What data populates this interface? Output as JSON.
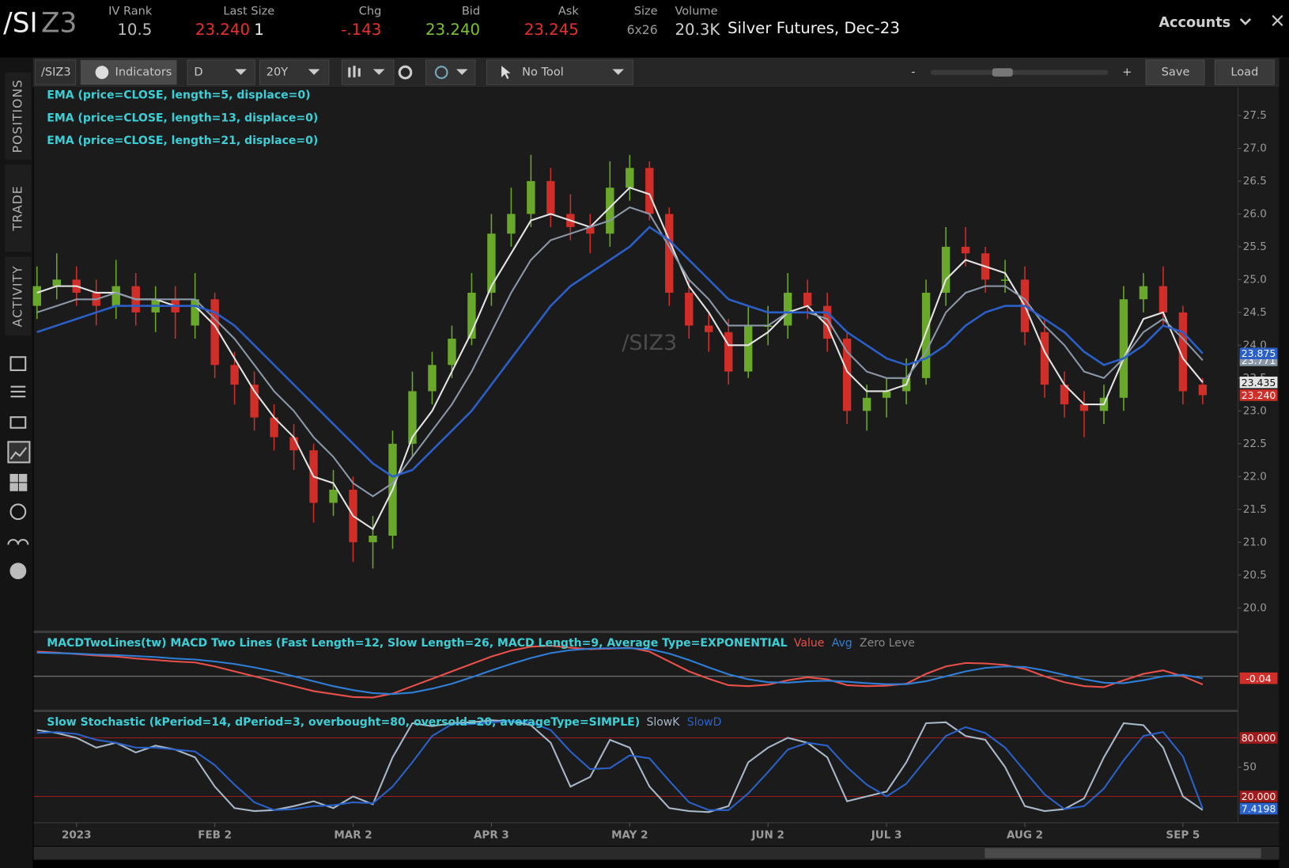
{
  "header": {
    "symbol_root": "/SI",
    "symbol_contract": "Z3",
    "quote": [
      {
        "label": "IV Rank",
        "value": "10.5"
      },
      {
        "label": "Last Size",
        "value": "23.240",
        "size": "1"
      },
      {
        "label": "Chg",
        "value": "-.143"
      },
      {
        "label": "Bid",
        "value": "23.240"
      },
      {
        "label": "Ask",
        "value": "23.245"
      },
      {
        "label": "Size",
        "value": "6x26"
      },
      {
        "label": "Volume",
        "value": "20.3K"
      }
    ],
    "description": "Silver Futures, Dec-23",
    "accounts": "Accounts"
  },
  "toolbar": {
    "symbol": "/SIZ3",
    "indicators": "Indicators",
    "aggregation": "D",
    "range": "20Y",
    "tool": "No Tool",
    "zoom_out": "-",
    "zoom_in": "+",
    "save": "Save",
    "load": "Load"
  },
  "side_tabs": [
    "POSITIONS",
    "TRADE",
    "ACTIVITY"
  ],
  "chart_data": [
    {
      "type": "candlestick",
      "watermark": "/SIZ3",
      "categories": [
        null,
        null,
        "2023",
        null,
        null,
        null,
        null,
        null,
        null,
        "FEB 2",
        null,
        null,
        null,
        null,
        null,
        null,
        "MAR 2",
        null,
        null,
        null,
        null,
        null,
        null,
        "APR 3",
        null,
        null,
        null,
        null,
        null,
        null,
        "MAY 2",
        null,
        null,
        null,
        null,
        null,
        null,
        "JUN 2",
        null,
        null,
        null,
        null,
        null,
        "JUL 3",
        null,
        null,
        null,
        null,
        null,
        null,
        "AUG 2",
        null,
        null,
        null,
        null,
        null,
        null,
        null,
        "SEP 5",
        null
      ],
      "open": [
        24.6,
        24.9,
        25.0,
        24.8,
        24.6,
        24.9,
        24.5,
        24.7,
        24.3,
        24.7,
        23.7,
        23.4,
        22.9,
        22.6,
        22.4,
        21.6,
        21.8,
        21.0,
        21.1,
        22.5,
        23.3,
        23.7,
        24.1,
        24.8,
        25.7,
        26.0,
        26.5,
        26.0,
        25.8,
        25.7,
        26.4,
        26.7,
        26.0,
        24.8,
        24.3,
        24.2,
        23.6,
        24.3,
        24.3,
        24.8,
        24.6,
        24.1,
        23.0,
        23.2,
        23.3,
        23.5,
        24.8,
        25.5,
        25.4,
        25.0,
        25.0,
        24.2,
        23.4,
        23.1,
        23.0,
        23.2,
        24.7,
        24.9,
        24.5,
        23.4
      ],
      "high": [
        25.2,
        25.4,
        25.2,
        25.0,
        25.3,
        25.1,
        24.9,
        24.9,
        25.1,
        24.8,
        23.9,
        23.6,
        23.1,
        22.8,
        22.5,
        22.1,
        22.0,
        21.4,
        22.7,
        23.6,
        23.9,
        24.3,
        25.1,
        26.0,
        26.4,
        26.9,
        26.7,
        26.3,
        26.0,
        26.8,
        26.9,
        26.8,
        26.1,
        25.0,
        24.5,
        24.4,
        24.6,
        24.6,
        25.1,
        25.0,
        24.8,
        24.2,
        23.4,
        23.5,
        23.8,
        25.0,
        25.8,
        25.8,
        25.5,
        25.3,
        25.2,
        24.4,
        23.6,
        23.3,
        23.4,
        24.9,
        25.1,
        25.2,
        24.6,
        23.5
      ],
      "low": [
        24.4,
        24.7,
        24.6,
        24.3,
        24.4,
        24.3,
        24.2,
        24.1,
        24.1,
        23.5,
        23.1,
        22.7,
        22.4,
        22.1,
        21.3,
        21.4,
        20.7,
        20.6,
        20.9,
        22.3,
        23.1,
        23.5,
        24.0,
        24.6,
        25.5,
        25.8,
        25.8,
        25.6,
        25.4,
        25.5,
        26.2,
        25.9,
        24.6,
        24.1,
        23.9,
        23.4,
        23.5,
        24.0,
        24.1,
        24.4,
        23.9,
        22.8,
        22.7,
        22.9,
        23.1,
        23.4,
        24.6,
        25.2,
        24.8,
        24.8,
        24.0,
        23.2,
        22.9,
        22.6,
        22.8,
        23.0,
        24.5,
        24.3,
        23.1,
        23.1
      ],
      "close": [
        24.9,
        25.0,
        24.8,
        24.6,
        24.9,
        24.5,
        24.7,
        24.5,
        24.7,
        23.7,
        23.4,
        22.9,
        22.6,
        22.4,
        21.6,
        21.8,
        21.0,
        21.1,
        22.5,
        23.3,
        23.7,
        24.1,
        24.8,
        25.7,
        26.0,
        26.5,
        26.0,
        25.8,
        25.7,
        26.4,
        26.7,
        26.0,
        24.8,
        24.3,
        24.2,
        23.6,
        24.3,
        24.3,
        24.8,
        24.6,
        24.1,
        23.0,
        23.2,
        23.3,
        23.5,
        24.8,
        25.5,
        25.4,
        25.0,
        25.0,
        24.2,
        23.4,
        23.1,
        23.0,
        23.2,
        24.7,
        24.9,
        24.5,
        23.3,
        23.24
      ],
      "close_label": "23.240",
      "up_color": "#6aa82c",
      "down_color": "#d02e28",
      "series": [
        {
          "name": "EMA (price=CLOSE, length=5, displace=0)",
          "color": "#e4e4e4",
          "values": [
            24.8,
            24.9,
            24.9,
            24.8,
            24.8,
            24.7,
            24.7,
            24.6,
            24.6,
            24.3,
            23.8,
            23.3,
            22.9,
            22.6,
            22.0,
            21.9,
            21.4,
            21.2,
            21.8,
            22.6,
            23.0,
            23.6,
            24.2,
            24.9,
            25.4,
            25.9,
            26.0,
            25.9,
            25.8,
            26.1,
            26.4,
            26.3,
            25.6,
            24.9,
            24.5,
            24.0,
            24.0,
            24.2,
            24.5,
            24.6,
            24.3,
            23.6,
            23.3,
            23.3,
            23.4,
            24.2,
            25.0,
            25.3,
            25.2,
            25.1,
            24.6,
            23.9,
            23.4,
            23.1,
            23.1,
            23.8,
            24.4,
            24.5,
            23.8,
            23.435
          ]
        },
        {
          "name": "EMA (price=CLOSE, length=13, displace=0)",
          "color": "#8a98a8",
          "values": [
            24.5,
            24.6,
            24.7,
            24.7,
            24.8,
            24.7,
            24.7,
            24.7,
            24.7,
            24.4,
            24.1,
            23.7,
            23.3,
            23.0,
            22.6,
            22.3,
            21.9,
            21.7,
            21.9,
            22.3,
            22.7,
            23.1,
            23.6,
            24.2,
            24.8,
            25.3,
            25.6,
            25.7,
            25.8,
            25.9,
            26.1,
            26.0,
            25.5,
            25.0,
            24.7,
            24.3,
            24.3,
            24.3,
            24.5,
            24.5,
            24.4,
            23.9,
            23.6,
            23.5,
            23.5,
            23.9,
            24.5,
            24.8,
            24.9,
            24.9,
            24.7,
            24.3,
            24.0,
            23.6,
            23.5,
            23.8,
            24.2,
            24.4,
            24.1,
            23.771
          ]
        },
        {
          "name": "EMA (price=CLOSE, length=21, displace=0)",
          "color": "#2a5fc8",
          "values": [
            24.2,
            24.3,
            24.4,
            24.5,
            24.6,
            24.6,
            24.6,
            24.6,
            24.6,
            24.5,
            24.3,
            24.0,
            23.7,
            23.4,
            23.1,
            22.8,
            22.5,
            22.2,
            22.0,
            22.1,
            22.4,
            22.7,
            23.0,
            23.4,
            23.8,
            24.2,
            24.6,
            24.9,
            25.1,
            25.3,
            25.5,
            25.8,
            25.6,
            25.3,
            25.0,
            24.7,
            24.6,
            24.5,
            24.5,
            24.5,
            24.5,
            24.2,
            24.0,
            23.8,
            23.7,
            23.8,
            24.0,
            24.3,
            24.5,
            24.6,
            24.6,
            24.4,
            24.2,
            23.9,
            23.7,
            23.8,
            24.0,
            24.3,
            24.2,
            23.875
          ]
        }
      ],
      "ylim": [
        19.66,
        27.93
      ],
      "yticks": [
        {
          "value": 20,
          "label": "20.0"
        },
        {
          "value": 20.5,
          "label": "20.5"
        },
        {
          "value": 21,
          "label": "21.0"
        },
        {
          "value": 21.5,
          "label": "21.5"
        },
        {
          "value": 22,
          "label": "22.0"
        },
        {
          "value": 22.5,
          "label": "22.5"
        },
        {
          "value": 23,
          "label": "23.0"
        },
        {
          "value": 23.5,
          "label": "23.5"
        },
        {
          "value": 24,
          "label": "24.0"
        },
        {
          "value": 24.5,
          "label": "24.5"
        },
        {
          "value": 25,
          "label": "25.0"
        },
        {
          "value": 25.5,
          "label": "25.5"
        },
        {
          "value": 26,
          "label": "26.0"
        },
        {
          "value": 26.5,
          "label": "26.5"
        },
        {
          "value": 27,
          "label": "27.0"
        },
        {
          "value": 27.5,
          "label": "27.5"
        }
      ]
    },
    {
      "type": "line",
      "title": "MACDTwoLines(tw) MACD Two Lines (Fast Length=12, Slow Length=26, MACD Length=9, Average Type=EXPONENTIAL",
      "series": [
        {
          "name": "Value",
          "color": "#e8504a",
          "values": [
            0.5,
            0.48,
            0.45,
            0.42,
            0.4,
            0.36,
            0.33,
            0.3,
            0.28,
            0.2,
            0.1,
            0,
            -0.1,
            -0.2,
            -0.3,
            -0.36,
            -0.42,
            -0.43,
            -0.35,
            -0.2,
            -0.05,
            0.1,
            0.25,
            0.4,
            0.52,
            0.6,
            0.62,
            0.58,
            0.55,
            0.56,
            0.58,
            0.5,
            0.3,
            0.1,
            -0.05,
            -0.18,
            -0.2,
            -0.17,
            -0.08,
            -0.02,
            -0.06,
            -0.18,
            -0.2,
            -0.19,
            -0.15,
            0.05,
            0.2,
            0.27,
            0.26,
            0.23,
            0.15,
            0,
            -0.12,
            -0.2,
            -0.22,
            -0.08,
            0.05,
            0.12,
            0,
            -0.165
          ]
        },
        {
          "name": "Avg",
          "color": "#2f7fd8",
          "values": [
            0.48,
            0.47,
            0.46,
            0.44,
            0.43,
            0.41,
            0.39,
            0.36,
            0.34,
            0.3,
            0.25,
            0.18,
            0.1,
            0,
            -0.1,
            -0.2,
            -0.28,
            -0.34,
            -0.36,
            -0.33,
            -0.25,
            -0.15,
            -0.02,
            0.12,
            0.25,
            0.37,
            0.47,
            0.53,
            0.56,
            0.57,
            0.57,
            0.55,
            0.46,
            0.33,
            0.18,
            0.04,
            -0.06,
            -0.12,
            -0.13,
            -0.1,
            -0.09,
            -0.11,
            -0.14,
            -0.16,
            -0.16,
            -0.1,
            0,
            0.1,
            0.17,
            0.2,
            0.19,
            0.12,
            0.03,
            -0.06,
            -0.13,
            -0.14,
            -0.08,
            0,
            0.03,
            -0.04
          ]
        }
      ],
      "reference_lines": [
        {
          "name": "Zero Leve",
          "value": 0,
          "color": "#8a8a8a"
        }
      ],
      "ylim": [
        -0.667,
        0.867
      ]
    },
    {
      "type": "line",
      "title": "Slow Stochastic (kPeriod=14, dPeriod=3, overbought=80, oversold=20, averageType=SIMPLE)",
      "series": [
        {
          "name": "SlowK",
          "color": "#a8b8c8",
          "values": [
            88,
            85,
            80,
            70,
            75,
            65,
            72,
            68,
            60,
            30,
            8,
            5,
            6,
            10,
            15,
            8,
            20,
            12,
            60,
            95,
            92,
            95,
            96,
            98,
            97,
            93,
            75,
            30,
            40,
            78,
            70,
            30,
            8,
            5,
            4,
            10,
            55,
            70,
            80,
            75,
            60,
            15,
            20,
            25,
            55,
            95,
            96,
            82,
            78,
            50,
            10,
            5,
            7,
            18,
            60,
            95,
            93,
            70,
            20,
            6
          ]
        },
        {
          "name": "SlowD",
          "color": "#2a62c9",
          "values": [
            85,
            86,
            84,
            78,
            75,
            70,
            70,
            68,
            66,
            52,
            32,
            14,
            6,
            7,
            10,
            11,
            14,
            13,
            30,
            55,
            82,
            94,
            94,
            96,
            97,
            96,
            88,
            66,
            48,
            49,
            62,
            59,
            36,
            14,
            6,
            6,
            23,
            45,
            68,
            75,
            72,
            50,
            32,
            20,
            33,
            58,
            82,
            91,
            85,
            70,
            46,
            22,
            7,
            10,
            28,
            57,
            82,
            86,
            61,
            7.4198
          ]
        }
      ],
      "reference_lines": [
        {
          "value": 80,
          "label": "80.000",
          "color": "#a01c1c"
        },
        {
          "value": 20,
          "label": "20.000",
          "color": "#a01c1c"
        }
      ],
      "ylim": [
        -7,
        106
      ],
      "yticks": [
        50
      ]
    }
  ]
}
